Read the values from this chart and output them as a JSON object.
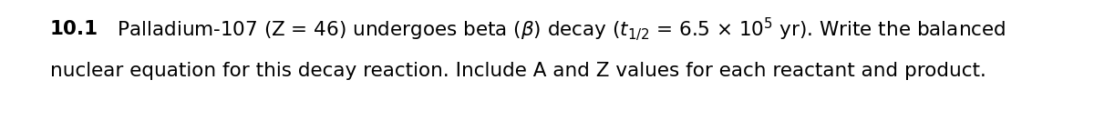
{
  "number_bold": "10.1",
  "line1_rest": "    Palladium-107 (Z = 46) undergoes beta (β) decay ($t_{1/2}$ = 6.5 × 10$^{5}$ yr). Write the balanced",
  "line2": "nuclear equation for this decay reaction. Include A and Z values for each reactant and product.",
  "font_size": 15.5,
  "text_color": "#000000",
  "background_color": "#ffffff",
  "fig_width": 12.0,
  "fig_height": 1.43,
  "dpi": 100
}
